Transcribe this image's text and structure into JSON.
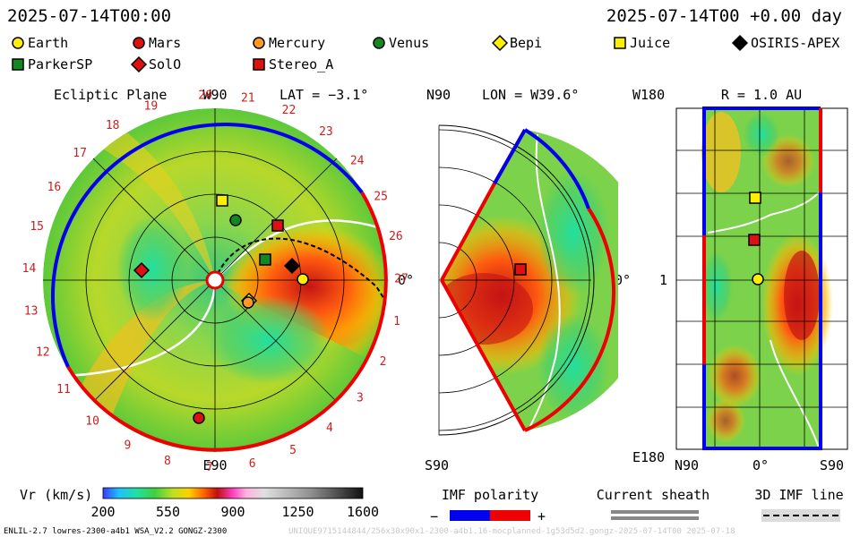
{
  "header": {
    "datetime": "2025-07-14T00:00",
    "right_label": "2025-07-14T00 +0.00 day"
  },
  "legend": {
    "bodies": [
      {
        "name": "Earth",
        "shape": "circle",
        "color": "#ffee00"
      },
      {
        "name": "Mars",
        "shape": "circle",
        "color": "#dd1111"
      },
      {
        "name": "Mercury",
        "shape": "circle",
        "color": "#ff9922"
      },
      {
        "name": "Venus",
        "shape": "circle",
        "color": "#118822"
      },
      {
        "name": "Bepi",
        "shape": "diamond",
        "color": "#ffee00"
      },
      {
        "name": "Juice",
        "shape": "square",
        "color": "#ffee00"
      },
      {
        "name": "OSIRIS-APEX",
        "shape": "diamond",
        "color": "#000000"
      },
      {
        "name": "ParkerSP",
        "shape": "square",
        "color": "#118822"
      },
      {
        "name": "SolO",
        "shape": "diamond",
        "color": "#dd1111"
      },
      {
        "name": "Stereo_A",
        "shape": "square",
        "color": "#dd1111"
      }
    ]
  },
  "panel_ecliptic": {
    "title": "Ecliptic Plane",
    "top_label": "W90",
    "lat_label": "LAT = −3.1°",
    "bottom_label": "E90",
    "right_label": "0°",
    "carrington_numbers": [
      "20",
      "21",
      "22",
      "23",
      "24",
      "25",
      "26",
      "27",
      "1",
      "2",
      "3",
      "4",
      "5",
      "6",
      "7",
      "8",
      "9",
      "10",
      "11",
      "12",
      "13",
      "14",
      "15",
      "16",
      "17",
      "18",
      "19"
    ]
  },
  "panel_meridional": {
    "top_left": "N90",
    "lon_label": "LON = W39.6°",
    "bottom_left": "S90",
    "right_label": "0°"
  },
  "panel_rectangular": {
    "top_left": "W180",
    "title": "R = 1.0 AU",
    "left_mid": "1",
    "bottom_left": "E180",
    "x_ticks": [
      "N90",
      "0°",
      "S90"
    ]
  },
  "colorbar": {
    "label": "Vr (km/s)",
    "ticks": [
      "200",
      "550",
      "900",
      "1250",
      "1600"
    ],
    "min": 200,
    "max": 1600
  },
  "imf": {
    "label": "IMF polarity",
    "minus": "−",
    "plus": "+",
    "neg_color": "#0000ee",
    "pos_color": "#ee0000"
  },
  "current_sheath": {
    "label": "Current sheath"
  },
  "imf_line": {
    "label": "3D IMF line"
  },
  "footer": {
    "left": "ENLIL-2.7 lowres-2300-a4b1 WSA_V2.2 GONGZ-2300",
    "right": "UNIQUE9715144844/256x30x90x1-2300-a4b1.16-mocplanned-1g53d5d2.gongz-2025-07-14T00 2025-07-18"
  },
  "chart_data": [
    {
      "type": "heatmap",
      "title": "Ecliptic Plane",
      "quantity": "Vr (km/s)",
      "range": [
        200,
        1600
      ],
      "bodies": [
        "Earth",
        "Mars",
        "Mercury",
        "Venus",
        "Bepi",
        "Juice",
        "OSIRIS-APEX",
        "ParkerSP",
        "SolO",
        "Stereo_A"
      ]
    },
    {
      "type": "heatmap",
      "title": "LON = W39.6°",
      "quantity": "Vr (km/s)",
      "range": [
        200,
        1600
      ],
      "bodies": [
        "Stereo_A"
      ]
    },
    {
      "type": "heatmap",
      "title": "R = 1.0 AU",
      "quantity": "Vr (km/s)",
      "range": [
        200,
        1600
      ],
      "x_ticks": [
        "N90",
        "0°",
        "S90"
      ],
      "bodies": [
        "Earth",
        "Juice",
        "Stereo_A"
      ]
    }
  ]
}
